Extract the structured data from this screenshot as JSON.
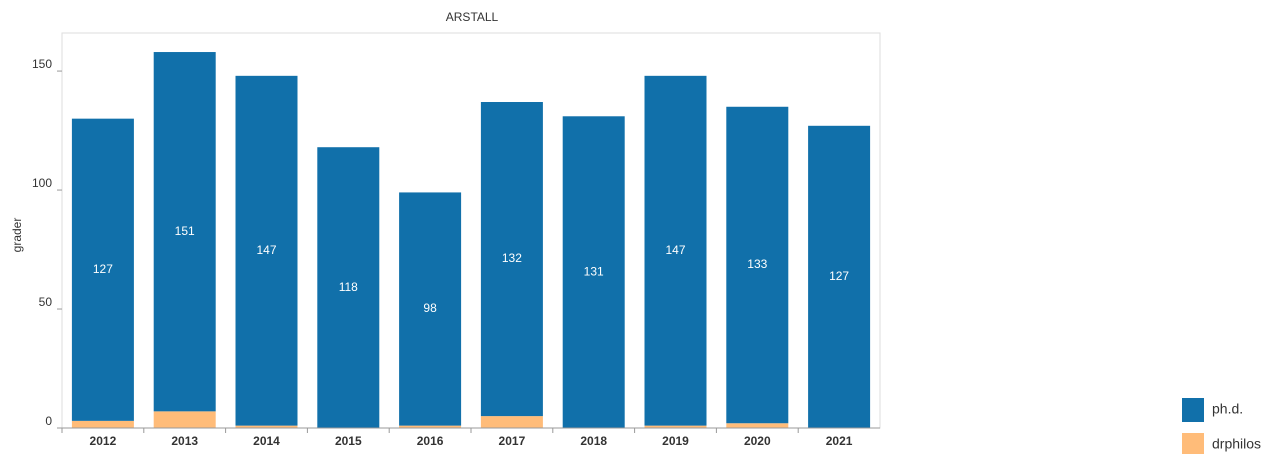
{
  "chart_data": {
    "type": "stacked_bar",
    "title": "ARSTALL",
    "y_label": "grader",
    "categories": [
      "2012",
      "2013",
      "2014",
      "2015",
      "2016",
      "2017",
      "2018",
      "2019",
      "2020",
      "2021"
    ],
    "series": [
      {
        "name": "ph.d.",
        "color": "#1170aa",
        "values": [
          127,
          151,
          147,
          118,
          98,
          132,
          131,
          147,
          133,
          127
        ]
      },
      {
        "name": "drphilos",
        "color": "#ffbc79",
        "values": [
          3,
          7,
          1,
          0,
          1,
          5,
          0,
          1,
          2,
          0
        ]
      }
    ],
    "ylim": [
      0,
      166
    ],
    "yticks": [
      0,
      50,
      100,
      150
    ],
    "grid": false,
    "legend": "bottom-right"
  }
}
